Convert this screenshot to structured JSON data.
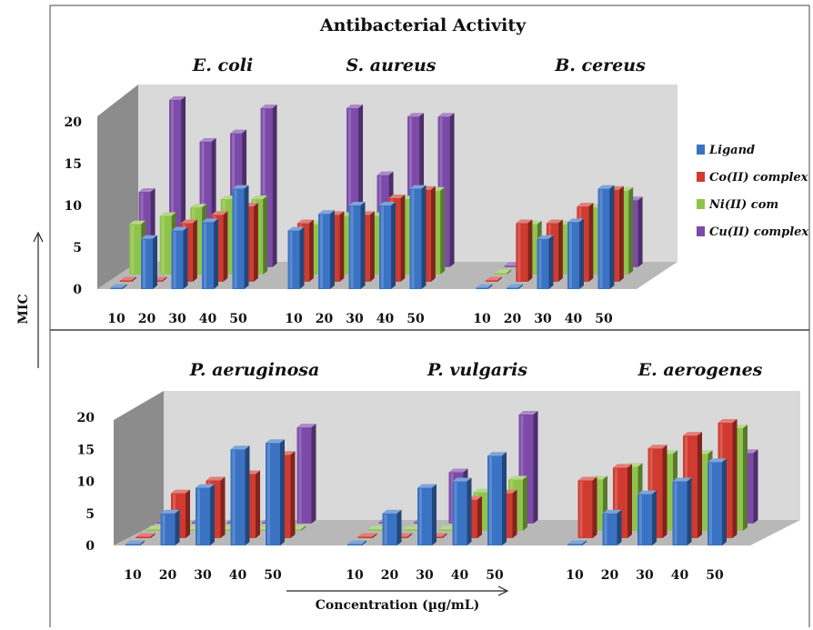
{
  "figure": {
    "title": "Antibacterial Activity",
    "ylabel": "MIC",
    "xlabel": "Concentration (µg/mL)"
  },
  "legend": [
    {
      "name": "Ligand",
      "color": "#3a73c4"
    },
    {
      "name": "Co(II) complex",
      "color": "#d03a2f"
    },
    {
      "name": "Ni(II) com",
      "color": "#8fc44a"
    },
    {
      "name": "Cu(II) complex",
      "color": "#7c4aa8"
    }
  ],
  "chart_data": [
    {
      "type": "bar",
      "panel": "top",
      "title": "Antibacterial Activity",
      "ylabel": "MIC",
      "ylim": [
        0,
        20
      ],
      "yticks": [
        0,
        5,
        10,
        15,
        20
      ],
      "groups": [
        {
          "organism": "E. coli",
          "categories": [
            "10",
            "20",
            "30",
            "40",
            "50"
          ],
          "series": [
            {
              "name": "Ligand",
              "values": [
                0,
                6,
                7,
                8,
                12
              ]
            },
            {
              "name": "Co(II) complex",
              "values": [
                0,
                0,
                7,
                8,
                9
              ]
            },
            {
              "name": "Ni(II) com",
              "values": [
                6,
                7,
                8,
                9,
                9
              ]
            },
            {
              "name": "Cu(II) complex",
              "values": [
                9,
                20,
                15,
                16,
                19
              ]
            }
          ]
        },
        {
          "organism": "S. aureus",
          "categories": [
            "10",
            "20",
            "30",
            "40",
            "50"
          ],
          "series": [
            {
              "name": "Ligand",
              "values": [
                7,
                9,
                10,
                10,
                12
              ]
            },
            {
              "name": "Co(II) complex",
              "values": [
                7,
                8,
                8,
                10,
                11
              ]
            },
            {
              "name": "Ni(II) com",
              "values": [
                6,
                7,
                7,
                9,
                10
              ]
            },
            {
              "name": "Cu(II) complex",
              "values": [
                5,
                19,
                11,
                18,
                18
              ]
            }
          ]
        },
        {
          "organism": "B. cereus",
          "categories": [
            "10",
            "20",
            "30",
            "40",
            "50"
          ],
          "series": [
            {
              "name": "Ligand",
              "values": [
                0,
                0,
                6,
                8,
                12
              ]
            },
            {
              "name": "Co(II) complex",
              "values": [
                0,
                7,
                7,
                9,
                11
              ]
            },
            {
              "name": "Ni(II) com",
              "values": [
                0,
                6,
                6,
                8,
                10
              ]
            },
            {
              "name": "Cu(II) complex",
              "values": [
                0,
                0,
                5,
                7,
                8
              ]
            }
          ]
        }
      ]
    },
    {
      "type": "bar",
      "panel": "bottom",
      "xlabel": "Concentration (µg/mL)",
      "ylim": [
        0,
        20
      ],
      "yticks": [
        0,
        5,
        10,
        15,
        20
      ],
      "groups": [
        {
          "organism": "P. aeruginosa",
          "categories": [
            "10",
            "20",
            "30",
            "40",
            "50"
          ],
          "series": [
            {
              "name": "Ligand",
              "values": [
                0,
                5,
                9,
                15,
                16
              ]
            },
            {
              "name": "Co(II) complex",
              "values": [
                0,
                7,
                9,
                10,
                13
              ]
            },
            {
              "name": "Ni(II) com",
              "values": [
                0,
                0,
                0,
                0,
                0
              ]
            },
            {
              "name": "Cu(II) complex",
              "values": [
                0,
                0,
                0,
                0,
                15
              ]
            }
          ]
        },
        {
          "organism": "P. vulgaris",
          "categories": [
            "10",
            "20",
            "30",
            "40",
            "50"
          ],
          "series": [
            {
              "name": "Ligand",
              "values": [
                0,
                5,
                9,
                10,
                14
              ]
            },
            {
              "name": "Co(II) complex",
              "values": [
                0,
                0,
                0,
                6,
                7
              ]
            },
            {
              "name": "Ni(II) com",
              "values": [
                0,
                0,
                0,
                6,
                8
              ]
            },
            {
              "name": "Cu(II) complex",
              "values": [
                0,
                0,
                8,
                0,
                17
              ]
            }
          ]
        },
        {
          "organism": "E. aerogenes",
          "categories": [
            "10",
            "20",
            "30",
            "40",
            "50"
          ],
          "series": [
            {
              "name": "Ligand",
              "values": [
                0,
                5,
                8,
                10,
                13
              ]
            },
            {
              "name": "Co(II) complex",
              "values": [
                9,
                11,
                14,
                16,
                18
              ]
            },
            {
              "name": "Ni(II) com",
              "values": [
                8,
                10,
                12,
                12,
                16
              ]
            },
            {
              "name": "Cu(II) complex",
              "values": [
                0,
                0,
                0,
                0,
                11
              ]
            }
          ]
        }
      ]
    }
  ]
}
